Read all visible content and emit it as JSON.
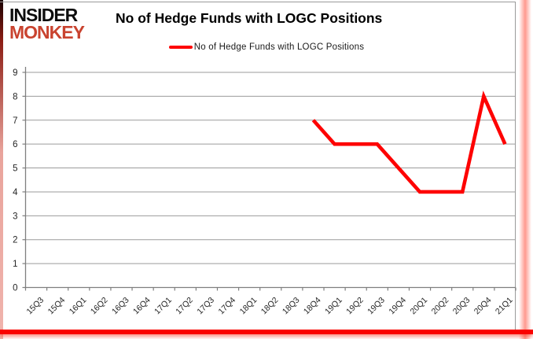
{
  "header": {
    "logo_line1": "INSIDER",
    "logo_line2": "MONKEY",
    "title": "No of Hedge Funds with LOGC Positions"
  },
  "legend": {
    "label": "No of Hedge Funds with LOGC Positions"
  },
  "colors": {
    "series_line": "#fe0101",
    "logo_red": "#c9432f",
    "grid": "#9b9b9b",
    "axis": "#7f7f7f",
    "tick_label": "#262626",
    "bottom_bar": "#fa0200"
  },
  "chart_data": {
    "type": "line",
    "title": "No of Hedge Funds with LOGC Positions",
    "categories": [
      "15Q3",
      "15Q4",
      "16Q1",
      "16Q2",
      "16Q3",
      "16Q4",
      "17Q1",
      "17Q2",
      "17Q3",
      "17Q4",
      "18Q1",
      "18Q2",
      "18Q3",
      "18Q4",
      "19Q1",
      "19Q2",
      "19Q3",
      "19Q4",
      "20Q1",
      "20Q2",
      "20Q3",
      "20Q4",
      "21Q1"
    ],
    "series": [
      {
        "name": "No of Hedge Funds with LOGC Positions",
        "values": [
          null,
          null,
          null,
          null,
          null,
          null,
          null,
          null,
          null,
          null,
          null,
          null,
          null,
          7,
          6,
          6,
          6,
          5,
          4,
          4,
          4,
          8,
          6
        ]
      }
    ],
    "ylim": [
      0,
      9
    ],
    "ytick_step": 1,
    "grid": true,
    "legend_position": "top-center",
    "xlabel": "",
    "ylabel": ""
  }
}
